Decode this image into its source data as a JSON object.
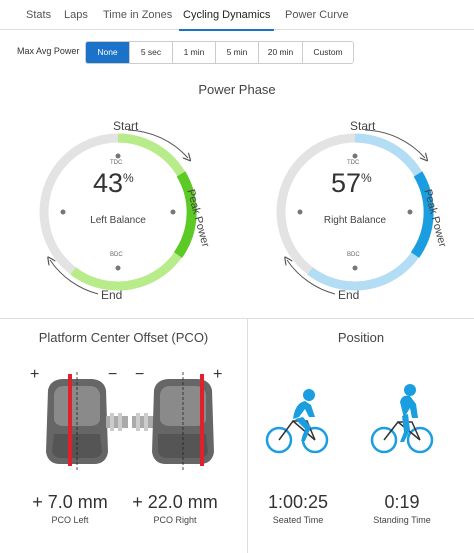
{
  "tabs": [
    {
      "label": "Stats",
      "active": false
    },
    {
      "label": "Laps",
      "active": false
    },
    {
      "label": "Time in Zones",
      "active": false
    },
    {
      "label": "Cycling Dynamics",
      "active": true
    },
    {
      "label": "Power Curve",
      "active": false
    }
  ],
  "max_avg_power": {
    "label": "Max Avg Power",
    "options": [
      "None",
      "5 sec",
      "1 min",
      "5 min",
      "20 min",
      "Custom"
    ],
    "selected": "None"
  },
  "power_phase": {
    "title": "Power Phase",
    "left": {
      "value": "43",
      "unit": "%",
      "label": "Left Balance",
      "tdc": "TDC",
      "bdc": "BDC",
      "start": "Start",
      "end": "End",
      "peak": "Peak Power",
      "color_light": "#b8ec8a",
      "color_dark": "#5cc925"
    },
    "right": {
      "value": "57",
      "unit": "%",
      "label": "Right Balance",
      "tdc": "TDC",
      "bdc": "BDC",
      "start": "Start",
      "end": "End",
      "peak": "Peak Power",
      "color_light": "#b3dcf5",
      "color_dark": "#1a9ee0"
    }
  },
  "pco": {
    "title": "Platform Center Offset (PCO)",
    "left_value": "+ 7.0 mm",
    "left_label": "PCO Left",
    "right_value": "+ 22.0 mm",
    "right_label": "PCO Right",
    "plus": "+",
    "minus": "−",
    "marker_color": "#e0202a"
  },
  "position": {
    "title": "Position",
    "seated_time": "1:00:25",
    "seated_label": "Seated Time",
    "standing_time": "0:19",
    "standing_label": "Standing Time",
    "rider_color": "#1a9ee0"
  }
}
